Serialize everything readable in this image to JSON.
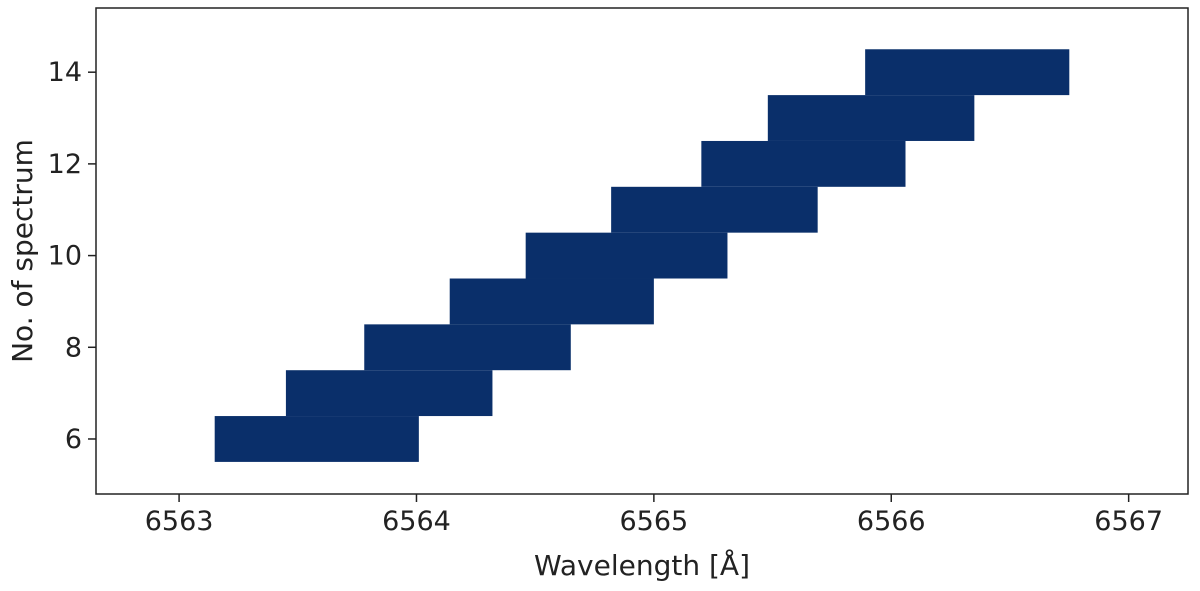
{
  "chart_data": {
    "type": "bar",
    "orientation": "horizontal-range",
    "color": "#0a2f6a",
    "xlabel": "Wavelength [Å]",
    "ylabel": "No. of spectrum",
    "xlim": [
      6562.65,
      6567.25
    ],
    "ylim": [
      4.8,
      15.4
    ],
    "xticks": [
      "6563",
      "6564",
      "6565",
      "6566",
      "6567"
    ],
    "yticks": [
      "6",
      "8",
      "10",
      "12",
      "14"
    ],
    "grid": false,
    "series": [
      {
        "bars": [
          {
            "spectrum": 6,
            "start": 6563.15,
            "end": 6564.01
          },
          {
            "spectrum": 7,
            "start": 6563.45,
            "end": 6564.32
          },
          {
            "spectrum": 8,
            "start": 6563.78,
            "end": 6564.65
          },
          {
            "spectrum": 9,
            "start": 6564.14,
            "end": 6565.0
          },
          {
            "spectrum": 10,
            "start": 6564.46,
            "end": 6565.31
          },
          {
            "spectrum": 11,
            "start": 6564.82,
            "end": 6565.69
          },
          {
            "spectrum": 12,
            "start": 6565.2,
            "end": 6566.06
          },
          {
            "spectrum": 13,
            "start": 6565.48,
            "end": 6566.35
          },
          {
            "spectrum": 14,
            "start": 6565.89,
            "end": 6566.75
          }
        ]
      }
    ]
  }
}
